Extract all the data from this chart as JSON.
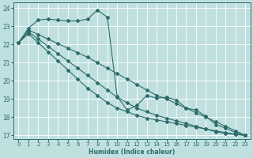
{
  "xlabel": "Humidex (Indice chaleur)",
  "bg_color": "#c0e0e0",
  "grid_color": "#ffffff",
  "line_color": "#2d6b6b",
  "xlim": [
    -0.5,
    23.5
  ],
  "ylim": [
    16.8,
    24.3
  ],
  "yticks": [
    17,
    18,
    19,
    20,
    21,
    22,
    23,
    24
  ],
  "xticks": [
    0,
    1,
    2,
    3,
    4,
    5,
    6,
    7,
    8,
    9,
    10,
    11,
    12,
    13,
    14,
    15,
    16,
    17,
    18,
    19,
    20,
    21,
    22,
    23
  ],
  "series": [
    {
      "x": [
        0,
        1,
        2,
        3,
        4,
        5,
        6,
        7,
        8,
        9,
        10,
        11,
        12,
        13,
        14,
        15,
        16,
        17,
        18,
        19,
        20,
        21,
        22,
        23
      ],
      "y": [
        22.1,
        22.9,
        23.35,
        23.4,
        23.35,
        23.3,
        23.3,
        23.4,
        23.9,
        23.5,
        19.15,
        18.4,
        18.65,
        19.2,
        19.05,
        19.1,
        18.95,
        18.5,
        18.4,
        18.05,
        17.6,
        17.4,
        17.15,
        17.0
      ]
    },
    {
      "x": [
        0,
        1,
        2,
        3,
        4,
        5,
        6,
        7,
        8,
        9,
        10,
        11,
        12,
        13,
        14,
        15,
        16,
        17,
        18,
        19,
        20,
        21,
        22,
        23
      ],
      "y": [
        22.1,
        22.8,
        22.55,
        22.3,
        22.05,
        21.8,
        21.55,
        21.3,
        21.0,
        20.7,
        20.4,
        20.1,
        19.8,
        19.5,
        19.2,
        19.0,
        18.75,
        18.5,
        18.25,
        18.0,
        17.75,
        17.5,
        17.25,
        17.0
      ]
    },
    {
      "x": [
        0,
        1,
        2,
        3,
        4,
        5,
        6,
        7,
        8,
        9,
        10,
        11,
        12,
        13,
        14,
        15,
        16,
        17,
        18,
        19,
        20,
        21,
        22,
        23
      ],
      "y": [
        22.1,
        22.7,
        22.3,
        21.9,
        21.5,
        21.1,
        20.7,
        20.3,
        19.9,
        19.5,
        19.1,
        18.8,
        18.5,
        18.3,
        18.1,
        17.95,
        17.8,
        17.65,
        17.5,
        17.35,
        17.2,
        17.1,
        17.05,
        17.0
      ]
    },
    {
      "x": [
        0,
        1,
        2,
        3,
        4,
        5,
        6,
        7,
        8,
        9,
        10,
        11,
        12,
        13,
        14,
        15,
        16,
        17,
        18,
        19,
        20,
        21,
        22,
        23
      ],
      "y": [
        22.1,
        22.6,
        22.1,
        21.6,
        21.1,
        20.6,
        20.1,
        19.6,
        19.2,
        18.8,
        18.5,
        18.3,
        18.1,
        17.95,
        17.85,
        17.75,
        17.65,
        17.55,
        17.45,
        17.35,
        17.25,
        17.15,
        17.07,
        17.0
      ]
    }
  ]
}
